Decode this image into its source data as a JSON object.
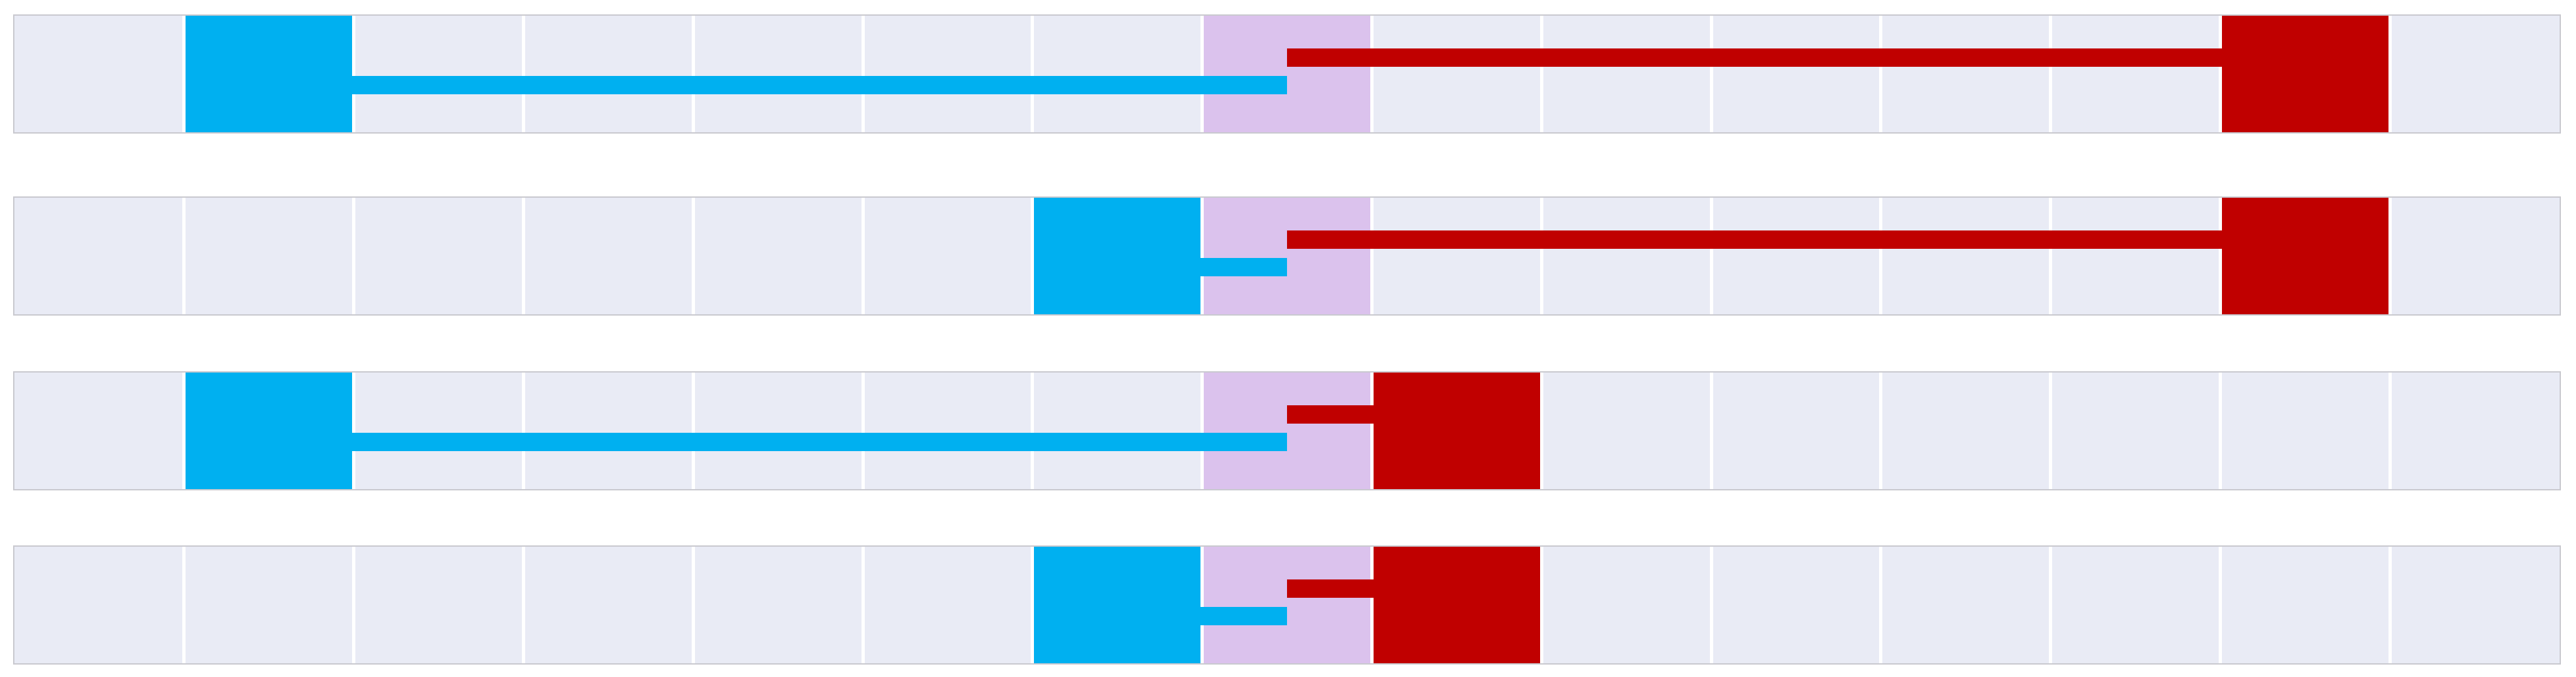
{
  "diagram": {
    "cells_per_track": 15,
    "colors": {
      "track_bg": "#e9ebf5",
      "cell_divider": "#ffffff",
      "target_cell": "#dbc2ed",
      "left_block": "#00b0f0",
      "right_block": "#c00000"
    },
    "target_cell_index": 7,
    "tracks": [
      {
        "left_block_cell": 1,
        "right_block_cell": 13
      },
      {
        "left_block_cell": 6,
        "right_block_cell": 13
      },
      {
        "left_block_cell": 1,
        "right_block_cell": 8
      },
      {
        "left_block_cell": 6,
        "right_block_cell": 8
      }
    ]
  }
}
